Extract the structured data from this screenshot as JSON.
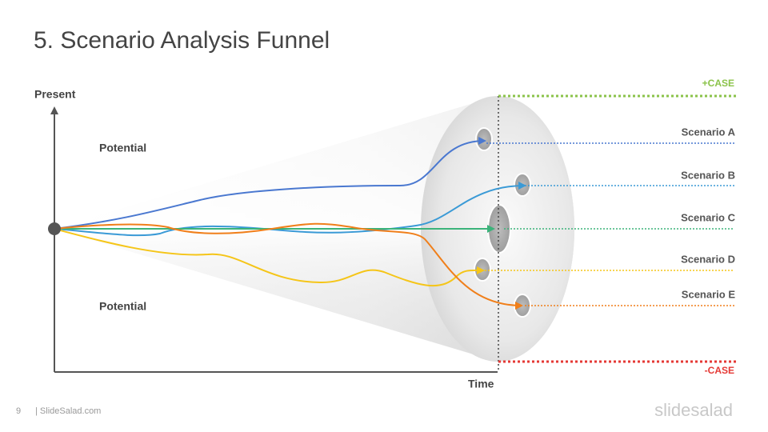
{
  "title": "5. Scenario Analysis Funnel",
  "axes": {
    "y_label": "Present",
    "x_label": "Time"
  },
  "regions": {
    "upper": "Potential",
    "lower": "Potential"
  },
  "cases": {
    "positive": {
      "label": "+CASE",
      "color": "#8bc34a"
    },
    "negative": {
      "label": "-CASE",
      "color": "#e53935"
    }
  },
  "scenarios": [
    {
      "label": "Scenario A",
      "color": "#4a78d0"
    },
    {
      "label": "Scenario B",
      "color": "#3a9ad6"
    },
    {
      "label": "Scenario C",
      "color": "#3bb37a"
    },
    {
      "label": "Scenario D",
      "color": "#f5c518"
    },
    {
      "label": "Scenario E",
      "color": "#f07f1a"
    }
  ],
  "footer": {
    "page": "9",
    "source": "| SlideSalad.com",
    "brand": "slidesalad"
  }
}
